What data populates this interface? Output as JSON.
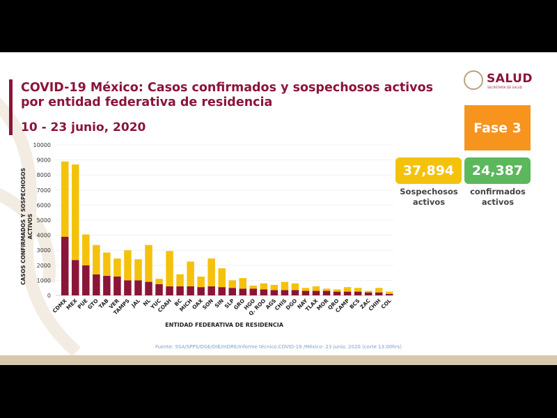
{
  "header": {
    "title_line1": "COVID-19 México: Casos confirmados y sospechosos activos",
    "title_line2": "por entidad federativa de residencia",
    "date_range": "10 - 23 junio, 2020"
  },
  "logo": {
    "name": "SALUD",
    "subtitle": "SECRETARÍA DE SALUD"
  },
  "phase": {
    "label": "Fase 3",
    "color": "#f7941d"
  },
  "stats": {
    "suspected": {
      "value": "37,894",
      "label_line1": "Sospechosos",
      "label_line2": "activos",
      "color": "#f4c20d"
    },
    "confirmed": {
      "value": "24,387",
      "label_line1": "confirmados",
      "label_line2": "activos",
      "color": "#5cb85c"
    }
  },
  "source": "Fuente: SSA/SPPS/DGE/DIE/InDRE/Informe técnico.COVID-19 /México- 23 junio, 2020 (corte 13:00hrs)",
  "chart_data": {
    "type": "bar",
    "stacked": true,
    "xlabel": "ENTIDAD FEDERATIVA DE RESIDENCIA",
    "ylabel": "CASOS CONFIRMADOS Y SOSPECHOSOS ACTIVOS",
    "ylim": [
      0,
      10000
    ],
    "yticks": [
      0,
      1000,
      2000,
      3000,
      4000,
      5000,
      6000,
      7000,
      8000,
      9000,
      10000
    ],
    "categories": [
      "CDMX",
      "MEX",
      "PUE",
      "GTO",
      "TAB",
      "VER",
      "TAMPS",
      "JAL",
      "NL",
      "YUC",
      "COAH",
      "BC",
      "MICH",
      "OAX",
      "SON",
      "SIN",
      "SLP",
      "GRO",
      "HGO",
      "Q. ROO",
      "AGS",
      "CHIS",
      "DGO",
      "NAY",
      "TLAX",
      "MOR",
      "QRO",
      "CAMP",
      "BCS",
      "ZAC",
      "CHIH",
      "COL"
    ],
    "series": [
      {
        "name": "Confirmados activos",
        "color": "#8a1538",
        "values": [
          3900,
          2350,
          2000,
          1400,
          1300,
          1250,
          1000,
          1000,
          900,
          750,
          600,
          600,
          600,
          550,
          600,
          550,
          500,
          450,
          450,
          400,
          350,
          350,
          350,
          300,
          300,
          300,
          250,
          250,
          250,
          200,
          200,
          100
        ]
      },
      {
        "name": "Sospechosos activos",
        "color": "#f4c20d",
        "values": [
          5000,
          6350,
          2050,
          1950,
          1550,
          1200,
          2000,
          1400,
          2450,
          350,
          2350,
          800,
          1650,
          700,
          1850,
          1250,
          500,
          700,
          200,
          400,
          350,
          550,
          450,
          200,
          300,
          150,
          150,
          300,
          250,
          100,
          300,
          150
        ]
      }
    ]
  }
}
